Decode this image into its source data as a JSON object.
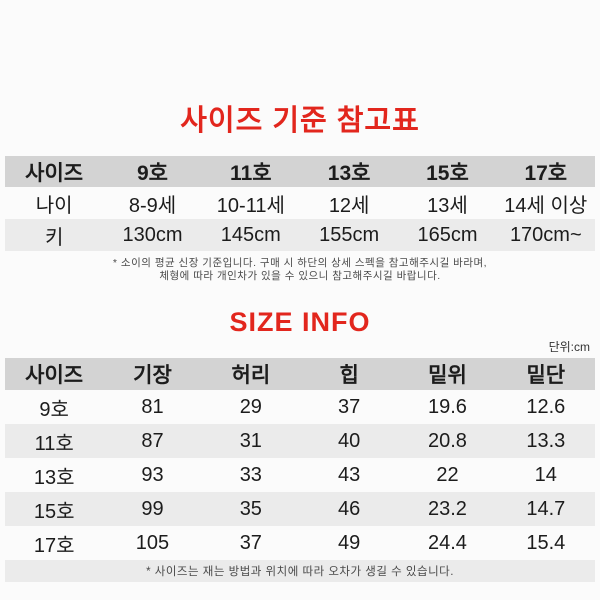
{
  "page": {
    "title": "사이즈 기준 참고표",
    "size_info_title": "SIZE INFO",
    "unit_label": "단위:cm",
    "colors": {
      "title_red": "#e2261d",
      "header_gray": "#d3d3d3",
      "row_gray": "#ebebeb",
      "text_dark": "#1c1c1c",
      "bg": "#fbfbfb"
    }
  },
  "reference_table": {
    "header": [
      "사이즈",
      "9호",
      "11호",
      "13호",
      "15호",
      "17호"
    ],
    "rows": [
      {
        "label": "나이",
        "values": [
          "8-9세",
          "10-11세",
          "12세",
          "13세",
          "14세 이상"
        ]
      },
      {
        "label": "키",
        "values": [
          "130cm",
          "145cm",
          "155cm",
          "165cm",
          "170cm~"
        ]
      }
    ],
    "note_line1": "* 소이의 평균 신장 기준입니다. 구매 시 하단의 상세 스펙을 참고해주시길 바라며,",
    "note_line2": "체형에 따라 개인차가 있을 수 있으니 참고해주시길 바랍니다."
  },
  "size_info_table": {
    "header": [
      "사이즈",
      "기장",
      "허리",
      "힙",
      "밑위",
      "밑단"
    ],
    "rows": [
      {
        "label": "9호",
        "values": [
          "81",
          "29",
          "37",
          "19.6",
          "12.6"
        ]
      },
      {
        "label": "11호",
        "values": [
          "87",
          "31",
          "40",
          "20.8",
          "13.3"
        ]
      },
      {
        "label": "13호",
        "values": [
          "93",
          "33",
          "43",
          "22",
          "14"
        ]
      },
      {
        "label": "15호",
        "values": [
          "99",
          "35",
          "46",
          "23.2",
          "14.7"
        ]
      },
      {
        "label": "17호",
        "values": [
          "105",
          "37",
          "49",
          "24.4",
          "15.4"
        ]
      }
    ],
    "note": "* 사이즈는 재는 방법과 위치에 따라 오차가 생길 수 있습니다."
  }
}
